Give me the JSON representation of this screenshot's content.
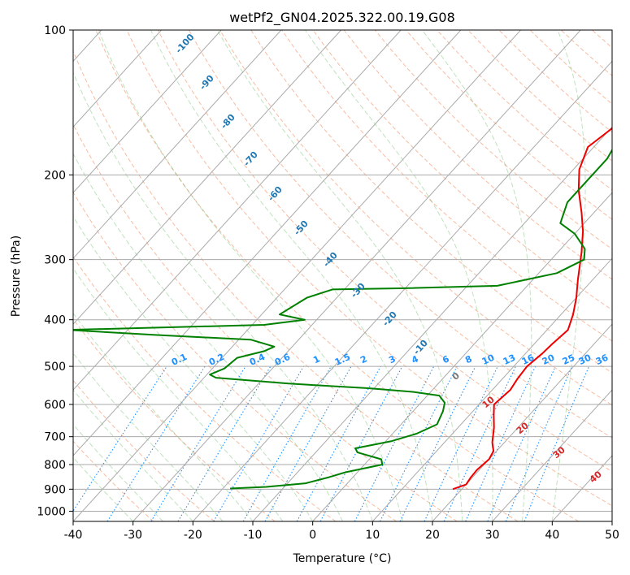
{
  "chart_data": {
    "type": "line",
    "title": "wetPf2_GN04.2025.322.00.19.G08",
    "xlabel": "Temperature (°C)",
    "ylabel": "Pressure (hPa)",
    "xlim": [
      -40,
      50
    ],
    "ylim": [
      1050,
      100
    ],
    "y_scale": "log",
    "grid": true,
    "x_ticks": [
      -40,
      -30,
      -20,
      -10,
      0,
      10,
      20,
      30,
      40,
      50
    ],
    "y_ticks": [
      100,
      200,
      300,
      400,
      500,
      600,
      700,
      800,
      900,
      1000
    ],
    "series": [
      {
        "role": "temperature",
        "color": "#ee0000",
        "points": [
          [
            18.5,
            900
          ],
          [
            20,
            880
          ],
          [
            19.7,
            850
          ],
          [
            19.6,
            820
          ],
          [
            20,
            780
          ],
          [
            19.5,
            750
          ],
          [
            18,
            720
          ],
          [
            16,
            670
          ],
          [
            14,
            630
          ],
          [
            12.5,
            600
          ],
          [
            13,
            560
          ],
          [
            12.5,
            530
          ],
          [
            12.2,
            500
          ],
          [
            12.8,
            470
          ],
          [
            13,
            450
          ],
          [
            13.5,
            420
          ],
          [
            12,
            390
          ],
          [
            10,
            360
          ],
          [
            7.5,
            330
          ],
          [
            4,
            290
          ],
          [
            1,
            262
          ],
          [
            -2,
            240
          ],
          [
            -6,
            215
          ],
          [
            -9,
            195
          ],
          [
            -11,
            175
          ],
          [
            -9,
            151
          ],
          [
            -5,
            145
          ],
          [
            0,
            138
          ],
          [
            3,
            130
          ],
          [
            7,
            120
          ],
          [
            9,
            114
          ],
          [
            11,
            106
          ],
          [
            13,
            100
          ]
        ]
      },
      {
        "role": "dewpoint",
        "color": "#008000",
        "points": [
          [
            -18.8,
            897
          ],
          [
            -13,
            890
          ],
          [
            -7,
            875
          ],
          [
            -4,
            850
          ],
          [
            -2,
            830
          ],
          [
            3,
            800
          ],
          [
            2,
            780
          ],
          [
            -3,
            755
          ],
          [
            -4,
            740
          ],
          [
            1,
            715
          ],
          [
            4,
            690
          ],
          [
            6,
            660
          ],
          [
            5,
            620
          ],
          [
            4,
            595
          ],
          [
            2,
            575
          ],
          [
            -3,
            565
          ],
          [
            -11,
            555
          ],
          [
            -25,
            543
          ],
          [
            -38,
            528
          ],
          [
            -39.5,
            520
          ],
          [
            -38,
            505
          ],
          [
            -37.5,
            480
          ],
          [
            -34,
            465
          ],
          [
            -33,
            455
          ],
          [
            -38,
            440
          ],
          [
            -55,
            430
          ],
          [
            -70,
            420
          ],
          [
            -38,
            410
          ],
          [
            -32,
            400
          ],
          [
            -34,
            396
          ],
          [
            -37,
            390
          ],
          [
            -35,
            360
          ],
          [
            -32,
            346
          ],
          [
            -20,
            344
          ],
          [
            -5,
            340
          ],
          [
            3,
            320
          ],
          [
            5.5,
            300
          ],
          [
            4,
            285
          ],
          [
            0,
            265
          ],
          [
            -4,
            252
          ],
          [
            -6,
            228
          ],
          [
            -6,
            205
          ],
          [
            -6,
            185
          ],
          [
            -7,
            170
          ],
          [
            -8,
            162
          ],
          [
            -8.5,
            152
          ],
          [
            -7,
            147
          ],
          [
            -5,
            144
          ],
          [
            -2.5,
            140
          ],
          [
            -2.5,
            132
          ],
          [
            -4,
            127
          ],
          [
            -4.5,
            120
          ],
          [
            -2,
            112
          ],
          [
            0.5,
            106
          ],
          [
            3,
            100
          ]
        ]
      }
    ],
    "isotherm_labels": [
      "-100",
      "-90",
      "-80",
      "-70",
      "-60",
      "-50",
      "-40",
      "-30",
      "-20",
      "-10"
    ],
    "mixing_ratio_labels": [
      "0.1",
      "0.2",
      "0.4",
      "0.6",
      "1",
      "1.5",
      "2",
      "3",
      "4",
      "6",
      "8",
      "10",
      "13",
      "16",
      "20",
      "25",
      "30",
      "36"
    ],
    "adiabat_labels": [
      "0",
      "10",
      "20",
      "30",
      "40"
    ]
  }
}
